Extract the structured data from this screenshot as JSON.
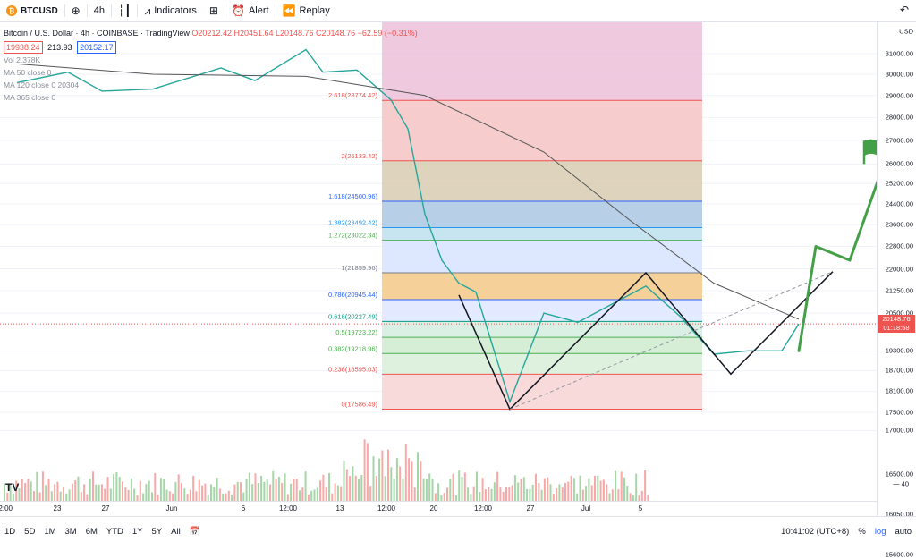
{
  "toolbar": {
    "symbol": "BTCUSD",
    "interval": "4h",
    "indicators": "Indicators",
    "alert": "Alert",
    "replay": "Replay"
  },
  "legend": {
    "title": "Bitcoin / U.S. Dollar · 4h · COINBASE · TradingView",
    "ohlc": "O20212.42 H20451.64 L20148.76 C20148.76 −62.59 (−0.31%)",
    "bid": "19938.24",
    "spread": "213.93",
    "ask": "20152.17",
    "vol": "Vol 2.378K",
    "ma50": "MA 50 close 0",
    "ma120": "MA 120 close 0  20304",
    "ma365": "MA 365 close 0"
  },
  "price_axis": {
    "currency": "USD",
    "last_price": "20148.76",
    "countdown": "01:18:58",
    "volume_tick": "— 40"
  },
  "fib_levels": [
    {
      "label": "0(17586.49)",
      "price": 17586.49,
      "color": "#ef5350"
    },
    {
      "label": "0.236(18595.03)",
      "price": 18595.03,
      "color": "#ef5350"
    },
    {
      "label": "0.382(19218.96)",
      "price": 19218.96,
      "color": "#4caf50"
    },
    {
      "label": "0.5(19723.22)",
      "price": 19723.22,
      "color": "#4caf50"
    },
    {
      "label": "0.618(20227.49)",
      "price": 20227.49,
      "color": "#089981"
    },
    {
      "label": "0.786(20945.44)",
      "price": 20945.44,
      "color": "#2962ff"
    },
    {
      "label": "1(21859.96)",
      "price": 21859.96,
      "color": "#787b86"
    },
    {
      "label": "1.272(23022.34)",
      "price": 23022.34,
      "color": "#4caf50"
    },
    {
      "label": "1.382(23492.42)",
      "price": 23492.42,
      "color": "#2196f3"
    },
    {
      "label": "1.618(24500.96)",
      "price": 24500.96,
      "color": "#2962ff"
    },
    {
      "label": "2(26133.42)",
      "price": 26133.42,
      "color": "#ef5350"
    },
    {
      "label": "2.618(28774.42)",
      "price": 28774.42,
      "color": "#ef5350"
    }
  ],
  "chart_data": {
    "type": "line",
    "title": "Bitcoin / U.S. Dollar · 4h · COINBASE",
    "y_ticks": [
      31000,
      30000,
      29000,
      28000,
      27000,
      26000,
      25200,
      24400,
      23600,
      22800,
      22000,
      21250,
      20500,
      19300,
      18700,
      18100,
      17500,
      17000,
      16500,
      16050,
      15600
    ],
    "x_ticks": [
      "12:00",
      "23",
      "27",
      "Jun",
      "6",
      "12:00",
      "13",
      "12:00",
      "20",
      "12:00",
      "27",
      "Jul",
      "5"
    ],
    "price_path": {
      "name": "",
      "points": [
        [
          "May 20",
          29600
        ],
        [
          "May 23",
          30100
        ],
        [
          "May 25",
          29200
        ],
        [
          "May 28",
          29300
        ],
        [
          "Jun 1",
          30300
        ],
        [
          "Jun 3",
          29700
        ],
        [
          "Jun 6",
          31200
        ],
        [
          "Jun 7",
          30100
        ],
        [
          "Jun 9",
          30200
        ],
        [
          "Jun 11",
          28800
        ],
        [
          "Jun 12",
          27500
        ],
        [
          "Jun 13",
          24000
        ],
        [
          "Jun 14",
          22300
        ],
        [
          "Jun 15",
          21500
        ],
        [
          "Jun 16",
          21200
        ],
        [
          "Jun 18",
          17800
        ],
        [
          "Jun 20",
          20500
        ],
        [
          "Jun 22",
          20200
        ],
        [
          "Jun 26",
          21400
        ],
        [
          "Jun 28",
          20400
        ],
        [
          "Jun 30",
          19200
        ],
        [
          "Jul 2",
          19300
        ],
        [
          "Jul 4",
          19300
        ],
        [
          "Jul 5",
          20150
        ]
      ]
    },
    "ma_120": {
      "name": "MA 120",
      "points": [
        [
          "May 20",
          30500
        ],
        [
          "May 28",
          30000
        ],
        [
          "Jun 6",
          29900
        ],
        [
          "Jun 13",
          29000
        ],
        [
          "Jun 20",
          26500
        ],
        [
          "Jun 25",
          23800
        ],
        [
          "Jun 30",
          21500
        ],
        [
          "Jul 5",
          20300
        ]
      ]
    },
    "pattern_w": [
      [
        "Jun 15",
        21100
      ],
      [
        "Jun 18",
        17586
      ],
      [
        "Jun 26",
        21859
      ],
      [
        "Jul 1",
        18600
      ],
      [
        "Jul 7",
        21900
      ]
    ],
    "projection_path": [
      [
        "Jul 5",
        19300
      ],
      [
        "Jul 6",
        22800
      ],
      [
        "Jul 8",
        22300
      ],
      [
        "Jul 10",
        26000
      ]
    ],
    "last_price": 20148.76
  }
}
